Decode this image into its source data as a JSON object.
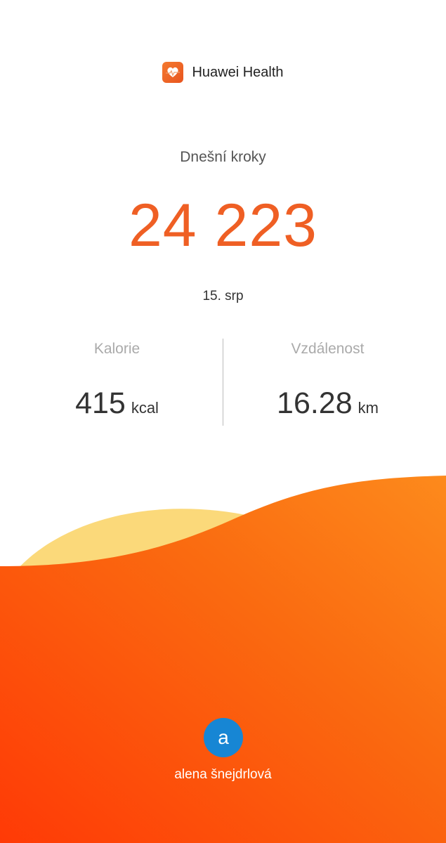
{
  "header": {
    "app_title": "Huawei Health",
    "logo_icon": "heart-pulse-icon"
  },
  "steps": {
    "label": "Dnešní kroky",
    "value": "24 223",
    "date": "15. srp"
  },
  "stats": [
    {
      "label": "Kalorie",
      "value": "415",
      "unit": "kcal"
    },
    {
      "label": "Vzdálenost",
      "value": "16.28",
      "unit": "km"
    }
  ],
  "user": {
    "avatar_letter": "a",
    "name": "alena šnejdrlová"
  },
  "colors": {
    "accent": "#ef5f24",
    "avatar": "#1786d4",
    "wave_yellow": "#fbd97a",
    "wave_orange": "#fa6a10"
  }
}
